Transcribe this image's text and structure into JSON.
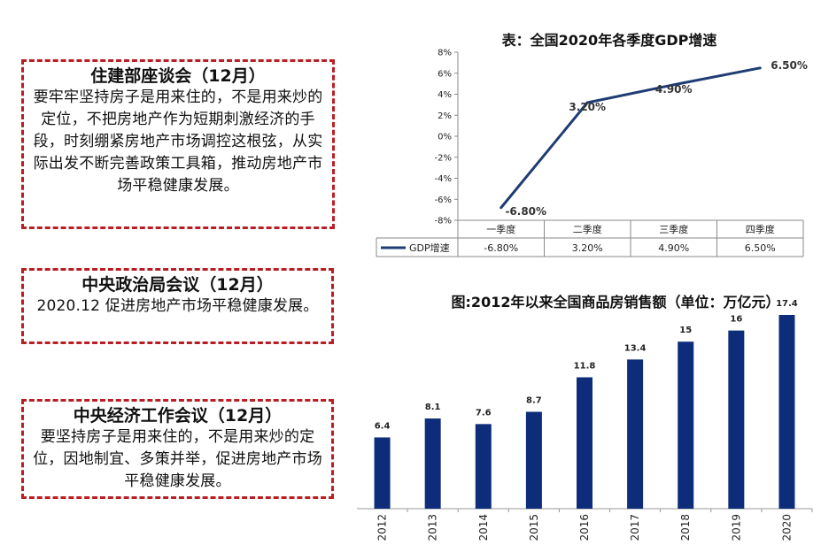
{
  "boxes": [
    {
      "title": "住建部座谈会（12月）",
      "body": "要牢牢坚持房子是用来住的，不是用来炒的定位，不把房地产作为短期刺激经济的手段，时刻绷紧房地产市场调控这根弦，从实际出发不断完善政策工具箱，推动房地产市场平稳健康发展。"
    },
    {
      "title": "中央政治局会议（12月）",
      "body": "2020.12 促进房地产市场平稳健康发展。"
    },
    {
      "title": "中央经济工作会议（12月）",
      "body": "要坚持房子是用来住的，不是用来炒的定位，因地制宜、多策并举，促进房地产市场平稳健康发展。"
    }
  ],
  "colors": {
    "border": "#b81f24",
    "line": "#1f3c73",
    "bar": "#0d2d7a"
  },
  "chart_data": [
    {
      "type": "line",
      "title": "表：全国2020年各季度GDP增速",
      "categories": [
        "一季度",
        "二季度",
        "三季度",
        "四季度"
      ],
      "series": [
        {
          "name": "GDP增速",
          "values": [
            -6.8,
            3.2,
            4.9,
            6.5
          ],
          "labels": [
            "-6.80%",
            "3.20%",
            "4.90%",
            "6.50%"
          ]
        }
      ],
      "ylim": [
        -8,
        8
      ],
      "yticks": [
        -8,
        -6,
        -4,
        -2,
        0,
        2,
        4,
        6,
        8
      ],
      "ytick_labels": [
        "-8%",
        "-6%",
        "-4%",
        "-2%",
        "0%",
        "2%",
        "4%",
        "6%",
        "8%"
      ],
      "data_table": true,
      "grid": false
    },
    {
      "type": "bar",
      "title": "图:2012年以来全国商品房销售额（单位：万亿元）",
      "categories": [
        "2012",
        "2013",
        "2014",
        "2015",
        "2016",
        "2017",
        "2018",
        "2019",
        "2020"
      ],
      "values": [
        6.4,
        8.1,
        7.6,
        8.7,
        11.8,
        13.4,
        15,
        16,
        17.4
      ],
      "value_labels": [
        "6.4",
        "8.1",
        "7.6",
        "8.7",
        "11.8",
        "13.4",
        "15",
        "16",
        "17.4"
      ],
      "ylim": [
        0,
        17.4
      ],
      "grid": false
    }
  ]
}
